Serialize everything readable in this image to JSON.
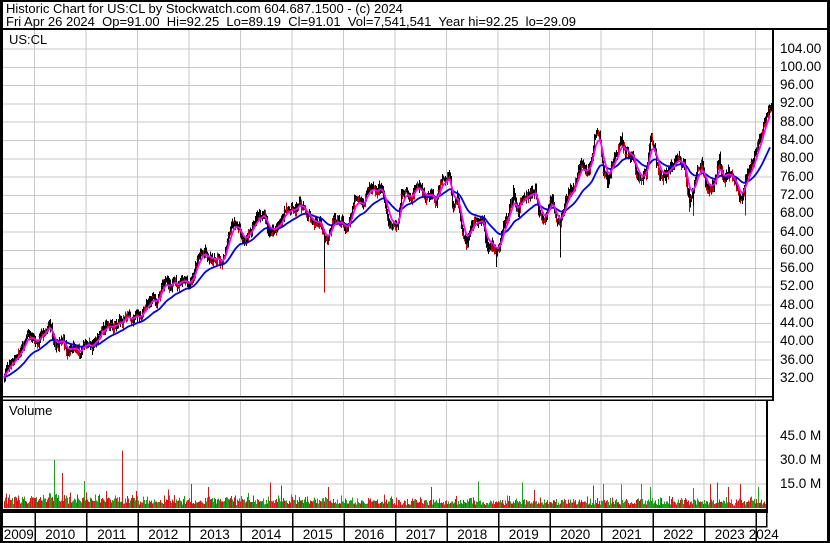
{
  "header": {
    "line1": "Historic Chart for US:CL by Stockwatch.com 604.687.1500 - (c) 2024",
    "line2": "Fri Apr 26 2024  Op=91.00  Hi=92.25  Lo=89.19  Cl=91.01  Vol=7,541,541  Year hi=92.25  lo=29.09"
  },
  "price_pane": {
    "symbol_label": "US:CL"
  },
  "volume_pane": {
    "label": "Volume"
  },
  "chart_data": {
    "type": "candlestick+volume",
    "symbol": "US:CL",
    "title": "Historic Chart for US:CL",
    "legend_position": "none",
    "grid": true,
    "price_axis": {
      "side": "right",
      "tick_labels": [
        "104.00",
        "100.00",
        "96.00",
        "92.00",
        "88.00",
        "84.00",
        "80.00",
        "76.00",
        "72.00",
        "68.00",
        "64.00",
        "60.00",
        "56.00",
        "52.00",
        "48.00",
        "44.00",
        "40.00",
        "36.00",
        "32.00"
      ],
      "tick_values": [
        104,
        100,
        96,
        92,
        88,
        84,
        80,
        76,
        72,
        68,
        64,
        60,
        56,
        52,
        48,
        44,
        40,
        36,
        32
      ],
      "unit_step": 4,
      "ylim": [
        28.2,
        108.1
      ]
    },
    "volume_axis": {
      "side": "right",
      "tick_labels": [
        "45.0 M",
        "30.0 M",
        "15.0 M"
      ],
      "tick_values_m": [
        45,
        30,
        15
      ],
      "ylim_m": [
        0,
        67
      ]
    },
    "x_axis": {
      "year_labels": [
        "2009",
        "2010",
        "2011",
        "2012",
        "2013",
        "2014",
        "2015",
        "2016",
        "2017",
        "2018",
        "2019",
        "2020",
        "2021",
        "2022",
        "2023",
        "2024"
      ],
      "start_month": "2009-05",
      "end_month": "2024-04"
    },
    "series": {
      "interval": "monthly_close_anchors",
      "monthly_closes": [
        31.2,
        34.8,
        35.5,
        36.6,
        38.1,
        39.4,
        42.0,
        41.1,
        39.4,
        41.9,
        42.3,
        44.1,
        39.5,
        39.4,
        40.8,
        37.1,
        38.8,
        38.4,
        37.4,
        40.2,
        39.1,
        38.9,
        40.3,
        42.7,
        42.9,
        43.7,
        43.4,
        44.5,
        44.3,
        45.4,
        44.9,
        46.2,
        45.5,
        46.9,
        48.9,
        49.4,
        48.8,
        52.0,
        53.3,
        51.7,
        53.6,
        52.4,
        53.8,
        52.3,
        53.4,
        56.5,
        59.0,
        59.6,
        58.8,
        57.3,
        58.3,
        57.5,
        59.6,
        64.7,
        66.2,
        65.2,
        61.6,
        63.2,
        64.6,
        66.8,
        67.6,
        68.1,
        63.8,
        64.4,
        65.2,
        66.8,
        68.7,
        69.2,
        68.4,
        70.8,
        69.3,
        67.6,
        66.8,
        65.4,
        66.8,
        62.2,
        63.2,
        66.7,
        66.2,
        66.6,
        64.3,
        67.3,
        70.7,
        70.9,
        69.2,
        73.2,
        73.5,
        72.9,
        74.1,
        71.3,
        65.5,
        65.4,
        65.5,
        72.7,
        73.2,
        71.0,
        73.7,
        74.1,
        72.3,
        71.6,
        72.7,
        70.1,
        74.8,
        75.4,
        77.0,
        68.8,
        71.6,
        64.2,
        61.3,
        64.7,
        66.3,
        66.4,
        66.6,
        59.5,
        61.6,
        59.5,
        62.3,
        66.3,
        68.6,
        72.8,
        68.0,
        71.6,
        71.6,
        72.2,
        73.4,
        68.3,
        66.3,
        68.8,
        71.7,
        66.6,
        66.3,
        70.1,
        72.9,
        73.2,
        77.1,
        78.9,
        77.2,
        78.8,
        85.3,
        85.5,
        77.2,
        74.8,
        78.8,
        80.6,
        84.3,
        81.6,
        81.1,
        79.8,
        75.6,
        75.8,
        77.0,
        85.3,
        81.2,
        76.5,
        75.8,
        77.1,
        78.8,
        80.1,
        79.3,
        78.0,
        70.2,
        73.6,
        77.6,
        78.8,
        73.5,
        73.3,
        75.1,
        80.2,
        74.8,
        77.0,
        76.2,
        74.1,
        71.1,
        75.2,
        77.6,
        79.7,
        83.2,
        86.2,
        90.0,
        91.0
      ],
      "bar_color": "#000000",
      "bar_accent_color": "#cc0000",
      "ma_fast_color": "#ff00ff",
      "ma_slow_color": "#0000ee"
    },
    "extremes": [
      {
        "month": "2015-08",
        "low": 50.8
      },
      {
        "month": "2018-12",
        "low": 56.4
      },
      {
        "month": "2020-03",
        "low": 58.4
      },
      {
        "month": "2022-10",
        "low": 67.5
      },
      {
        "month": "2023-10",
        "low": 67.6
      },
      {
        "month": "2024-04",
        "high": 92.25
      }
    ],
    "volume_series": {
      "typical_range_m": [
        2,
        10
      ],
      "up_color": "#19a119",
      "down_color": "#dc1414",
      "spikes": [
        {
          "month": "2010-05",
          "millions": 30,
          "color": "#19a119"
        },
        {
          "month": "2010-07",
          "millions": 22,
          "color": "#dc1414"
        },
        {
          "month": "2010-12",
          "millions": 17,
          "color": "#19a119"
        },
        {
          "month": "2011-09",
          "millions": 36,
          "color": "#dc1414"
        },
        {
          "month": "2013-01",
          "millions": 15,
          "color": "#dc1414"
        },
        {
          "month": "2013-05",
          "millions": 13,
          "color": "#dc1414"
        },
        {
          "month": "2014-10",
          "millions": 14,
          "color": "#dc1414"
        },
        {
          "month": "2015-09",
          "millions": 13,
          "color": "#dc1414"
        },
        {
          "month": "2017-09",
          "millions": 13,
          "color": "#dc1414"
        },
        {
          "month": "2019-06",
          "millions": 16,
          "color": "#19a119"
        },
        {
          "month": "2021-01",
          "millions": 15,
          "color": "#19a119"
        },
        {
          "month": "2021-12",
          "millions": 13,
          "color": "#19a119"
        },
        {
          "month": "2023-02",
          "millions": 15,
          "color": "#dc1414"
        },
        {
          "month": "2023-06",
          "millions": 13,
          "color": "#dc1414"
        },
        {
          "month": "2023-09",
          "millions": 15,
          "color": "#dc1414"
        },
        {
          "month": "2024-01",
          "millions": 13,
          "color": "#19a119"
        }
      ]
    },
    "last_trade": {
      "date": "Fri Apr 26 2024",
      "open": "91.00",
      "high": "92.25",
      "low": "89.19",
      "close": "91.01",
      "volume": "7,541,541",
      "year_hi": "92.25",
      "year_lo": "29.09"
    },
    "colors": {
      "grid": "#c9c9c9",
      "border": "#000000",
      "background": "#ffffff"
    }
  }
}
